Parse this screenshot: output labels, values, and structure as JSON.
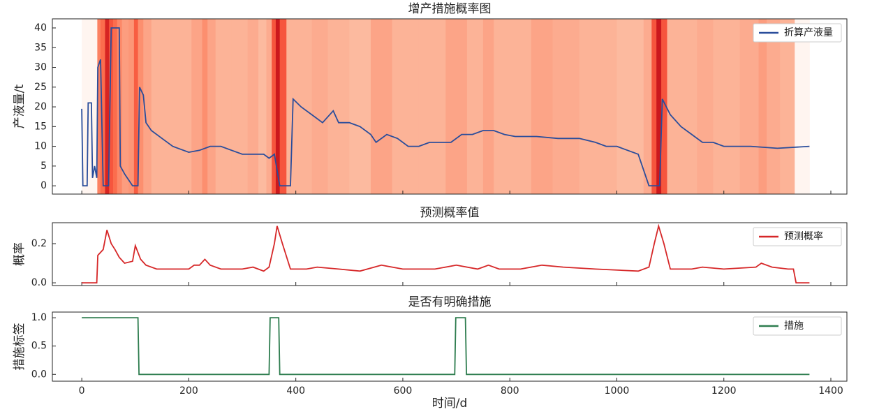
{
  "chart_data": [
    {
      "type": "line",
      "title": "增产措施概率图",
      "ylabel": "产液量/t",
      "xlim": [
        -55,
        1430
      ],
      "xticks": [
        0,
        200,
        400,
        600,
        800,
        1000,
        1200,
        1400
      ],
      "ylim": [
        -2.1,
        42.3
      ],
      "yticks": [
        0,
        5,
        10,
        15,
        20,
        25,
        30,
        35,
        40
      ],
      "legend": "upper right",
      "heatmap_colors": [
        "#fff5f0",
        "#fcbba1",
        "#fc9272",
        "#fb6a4a",
        "#ef3b2c",
        "#cb181d"
      ],
      "series": [
        {
          "name": "折算产液量",
          "color": "#2a4d9b",
          "x": [
            0,
            2,
            10,
            12,
            18,
            20,
            24,
            28,
            30,
            35,
            40,
            50,
            55,
            70,
            72,
            80,
            90,
            95,
            105,
            108,
            115,
            120,
            130,
            150,
            170,
            200,
            220,
            240,
            260,
            280,
            300,
            320,
            340,
            350,
            360,
            370,
            390,
            395,
            410,
            430,
            450,
            470,
            480,
            500,
            520,
            540,
            550,
            570,
            590,
            610,
            630,
            650,
            670,
            690,
            710,
            730,
            750,
            770,
            790,
            810,
            850,
            890,
            930,
            960,
            980,
            1000,
            1020,
            1040,
            1060,
            1080,
            1085,
            1100,
            1120,
            1140,
            1160,
            1180,
            1200,
            1250,
            1300,
            1360
          ],
          "values": [
            19.5,
            0,
            0,
            21,
            21,
            2,
            5,
            2,
            30,
            32,
            0,
            0,
            40,
            40,
            5,
            3,
            1,
            0,
            0,
            25,
            23,
            16,
            14,
            12,
            10,
            8.5,
            9,
            10,
            10,
            9,
            8,
            8,
            8,
            7,
            8,
            0,
            0,
            22,
            20,
            18,
            16,
            19,
            16,
            16,
            15,
            13,
            11,
            13,
            12,
            10,
            10,
            11,
            11,
            11,
            13,
            13,
            14,
            14,
            13,
            12.5,
            12.5,
            12,
            12,
            11,
            10,
            10,
            9,
            8,
            0,
            0,
            22,
            18,
            15,
            13,
            11,
            11,
            10,
            10,
            9.5,
            10
          ]
        }
      ]
    },
    {
      "type": "line",
      "title": "预测概率值",
      "ylabel": "概率",
      "xlim": [
        -55,
        1430
      ],
      "xticks": [
        0,
        200,
        400,
        600,
        800,
        1000,
        1200,
        1400
      ],
      "ylim": [
        -0.014,
        0.307
      ],
      "yticks": [
        {
          "value": 0,
          "label": "0.0"
        },
        {
          "value": 0.2,
          "label": "0.2"
        }
      ],
      "legend": "upper right",
      "series": [
        {
          "name": "预测概率",
          "color": "#d62728",
          "x": [
            0,
            28,
            30,
            40,
            47,
            55,
            62,
            70,
            80,
            95,
            100,
            110,
            120,
            140,
            180,
            200,
            210,
            220,
            230,
            240,
            260,
            300,
            320,
            340,
            350,
            360,
            365,
            375,
            390,
            420,
            440,
            480,
            520,
            560,
            600,
            660,
            700,
            740,
            760,
            780,
            820,
            860,
            900,
            960,
            1040,
            1060,
            1070,
            1078,
            1088,
            1100,
            1140,
            1160,
            1200,
            1260,
            1270,
            1290,
            1320,
            1330,
            1335,
            1360
          ],
          "values": [
            0,
            0,
            0.14,
            0.17,
            0.27,
            0.2,
            0.17,
            0.13,
            0.1,
            0.11,
            0.19,
            0.12,
            0.09,
            0.07,
            0.07,
            0.07,
            0.09,
            0.09,
            0.12,
            0.09,
            0.07,
            0.07,
            0.08,
            0.06,
            0.08,
            0.2,
            0.29,
            0.2,
            0.07,
            0.07,
            0.08,
            0.07,
            0.06,
            0.09,
            0.07,
            0.07,
            0.09,
            0.07,
            0.09,
            0.07,
            0.07,
            0.09,
            0.08,
            0.07,
            0.06,
            0.08,
            0.2,
            0.29,
            0.2,
            0.07,
            0.07,
            0.08,
            0.07,
            0.08,
            0.1,
            0.08,
            0.07,
            0.07,
            0,
            0
          ]
        }
      ]
    },
    {
      "type": "line",
      "title": "是否有明确措施",
      "ylabel": "措施标签",
      "xlabel": "时间/d",
      "xlim": [
        -55,
        1430
      ],
      "xticks": [
        0,
        200,
        400,
        600,
        800,
        1000,
        1200,
        1400
      ],
      "ylim": [
        -0.12,
        1.1
      ],
      "yticks": [
        {
          "value": 0,
          "label": "0.0"
        },
        {
          "value": 0.5,
          "label": "0.5"
        },
        {
          "value": 1,
          "label": "1.0"
        }
      ],
      "legend": "upper right",
      "series": [
        {
          "name": "措施",
          "color": "#2e7d4f",
          "x": [
            0,
            105,
            107,
            350,
            352,
            368,
            370,
            697,
            699,
            717,
            719,
            1360
          ],
          "values": [
            1,
            1,
            0,
            0,
            1,
            1,
            0,
            0,
            1,
            1,
            0,
            0
          ]
        }
      ]
    }
  ]
}
